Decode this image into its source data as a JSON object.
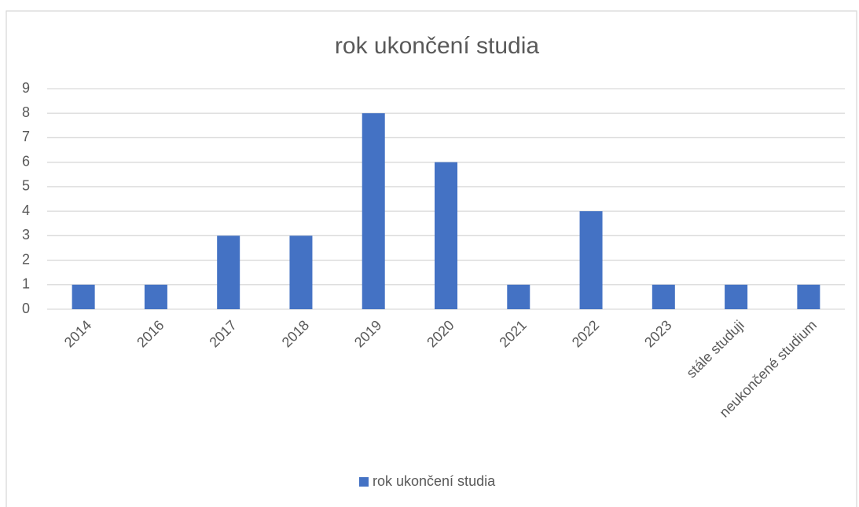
{
  "chart_data": {
    "type": "bar",
    "title": "rok ukončení studia",
    "categories": [
      "2014",
      "2016",
      "2017",
      "2018",
      "2019",
      "2020",
      "2021",
      "2022",
      "2023",
      "stále studuji",
      "neukončené studium"
    ],
    "series": [
      {
        "name": "rok ukončení studia",
        "color": "#4472c4",
        "values": [
          1,
          1,
          3,
          3,
          8,
          6,
          1,
          4,
          1,
          1,
          1
        ]
      }
    ],
    "ylim": [
      0,
      9
    ],
    "yticks": [
      0,
      1,
      2,
      3,
      4,
      5,
      6,
      7,
      8,
      9
    ],
    "grid": true,
    "legend": "bottom"
  }
}
